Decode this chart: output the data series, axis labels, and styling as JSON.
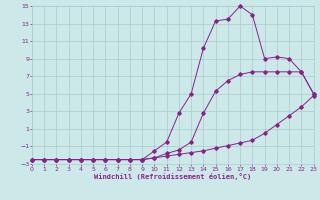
{
  "xlabel": "Windchill (Refroidissement éolien,°C)",
  "bg_color": "#cce8e8",
  "grid_color": "#aacccc",
  "line_color": "#882288",
  "xlim": [
    0,
    23
  ],
  "ylim": [
    -3,
    15
  ],
  "xticks": [
    0,
    1,
    2,
    3,
    4,
    5,
    6,
    7,
    8,
    9,
    10,
    11,
    12,
    13,
    14,
    15,
    16,
    17,
    18,
    19,
    20,
    21,
    22,
    23
  ],
  "yticks": [
    -3,
    -1,
    1,
    3,
    5,
    7,
    9,
    11,
    13,
    15
  ],
  "line1_x": [
    0,
    1,
    2,
    3,
    4,
    5,
    6,
    7,
    8,
    9,
    10,
    11,
    12,
    13,
    14,
    15,
    16,
    17,
    18,
    19,
    20,
    21,
    22,
    23
  ],
  "line1_y": [
    -2.5,
    -2.5,
    -2.5,
    -2.5,
    -2.5,
    -2.5,
    -2.5,
    -2.5,
    -2.5,
    -2.5,
    -2.3,
    -2.1,
    -1.9,
    -1.7,
    -1.5,
    -1.2,
    -0.9,
    -0.6,
    -0.3,
    0.5,
    1.5,
    2.5,
    3.5,
    4.8
  ],
  "line2_x": [
    0,
    1,
    2,
    3,
    4,
    5,
    6,
    7,
    8,
    9,
    10,
    11,
    12,
    13,
    14,
    15,
    16,
    17,
    18,
    19,
    20,
    21,
    22,
    23
  ],
  "line2_y": [
    -2.5,
    -2.5,
    -2.5,
    -2.5,
    -2.5,
    -2.5,
    -2.5,
    -2.5,
    -2.5,
    -2.5,
    -2.3,
    -1.8,
    -1.4,
    -0.5,
    2.8,
    5.3,
    6.5,
    7.2,
    7.5,
    7.5,
    7.5,
    7.5,
    7.5,
    5.0
  ],
  "line3_x": [
    0,
    1,
    2,
    3,
    4,
    5,
    6,
    7,
    8,
    9,
    10,
    11,
    12,
    13,
    14,
    15,
    16,
    17,
    18,
    19,
    20,
    21,
    22,
    23
  ],
  "line3_y": [
    -2.5,
    -2.5,
    -2.5,
    -2.5,
    -2.5,
    -2.5,
    -2.5,
    -2.5,
    -2.5,
    -2.5,
    -1.5,
    -0.5,
    2.8,
    5.0,
    10.2,
    13.3,
    13.5,
    15.0,
    14.0,
    9.0,
    9.2,
    9.0,
    7.5,
    5.0
  ]
}
